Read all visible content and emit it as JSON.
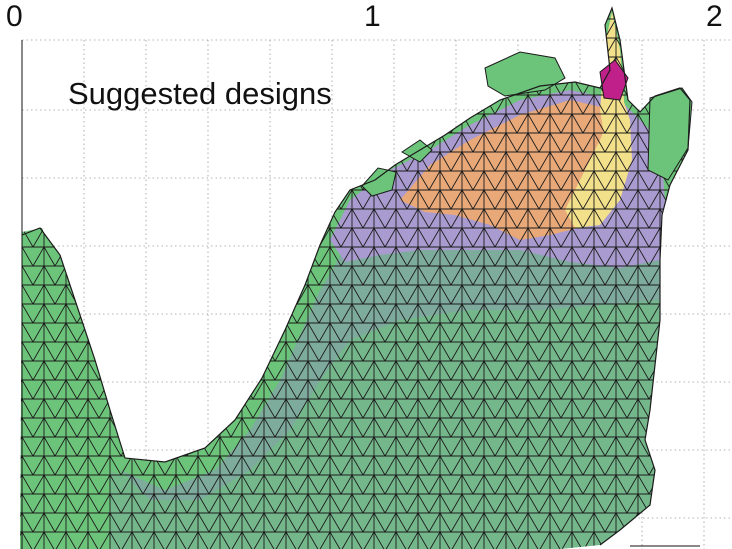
{
  "axis": {
    "tick_labels": [
      "0",
      "1",
      "2"
    ]
  },
  "annotation": "Suggested designs",
  "colors": {
    "background": "#ffffff",
    "grid": "#9a9a9a",
    "mesh_edge": "#1b1b1b",
    "region_green": "#6cc47a",
    "region_teal": "#7fa8a0",
    "region_lavender": "#a99bd0",
    "region_orange": "#e8a878",
    "region_yellow": "#f3e08a",
    "region_magenta": "#c0208a"
  }
}
